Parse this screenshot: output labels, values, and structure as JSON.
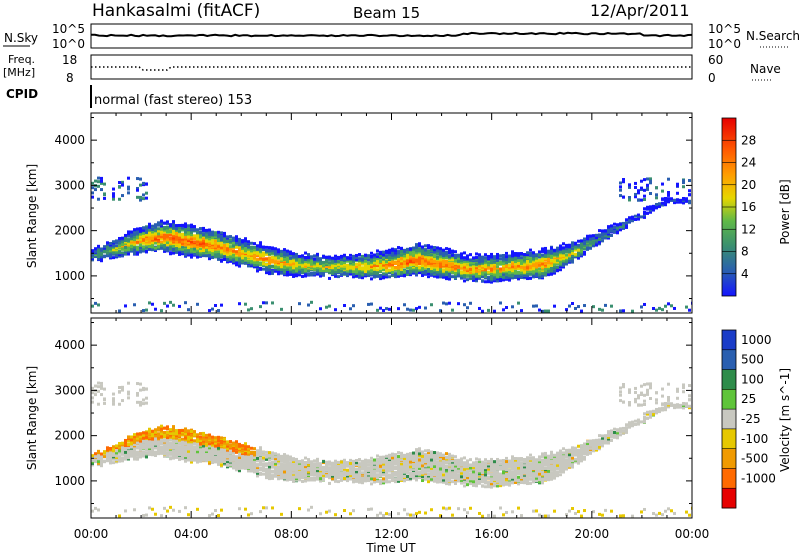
{
  "header": {
    "station": "Hankasalmi (fitACF)",
    "beam": "Beam 15",
    "date": "12/Apr/2011"
  },
  "status_panels": {
    "nsky_label": "N.Sky",
    "nsky_ticks": [
      "10^5",
      "10^0"
    ],
    "nsearch_label": "N.Search",
    "nsearch_ticks": [
      "10^5",
      "10^0"
    ],
    "freq_label": "Freq.",
    "freq_unit": "[MHz]",
    "freq_ticks": [
      "18",
      "8"
    ],
    "nave_label": "Nave",
    "nave_ticks": [
      "60",
      "0"
    ],
    "cpid_label": "CPID",
    "cpid_text": "normal (fast stereo) 153"
  },
  "colors": {
    "power_scale": [
      "#1414ff",
      "#2a5fb0",
      "#3a8f70",
      "#5fb848",
      "#e6d600",
      "#ff9e00",
      "#ff6a00",
      "#ff3a00",
      "#e60000"
    ],
    "velocity_scale": [
      "#1a3cc8",
      "#2a5fb0",
      "#2e8c4a",
      "#5fc43a",
      "#c8c8c0",
      "#e6c800",
      "#f09a00",
      "#ff6a00",
      "#e60000"
    ],
    "ground_scatter": "#c8c8c0"
  },
  "chart_data": [
    {
      "type": "heatmap",
      "title": "",
      "xlabel": "Time UT",
      "ylabel": "Slant Range [km]",
      "x_ticks": [
        "00:00",
        "04:00",
        "08:00",
        "12:00",
        "16:00",
        "20:00",
        "00:00"
      ],
      "x_range_hours": [
        0,
        24
      ],
      "y_ticks": [
        "1000",
        "2000",
        "3000",
        "4000"
      ],
      "ylim": [
        180,
        4600
      ],
      "colorbar_label": "Power [dB]",
      "colorbar_ticks": [
        "4",
        "8",
        "12",
        "16",
        "20",
        "24",
        "28"
      ],
      "colorbar_range": [
        0,
        32
      ],
      "main_band": {
        "hours": [
          0,
          1,
          2,
          3,
          4,
          5,
          6,
          7,
          8,
          9,
          10,
          11,
          12,
          13,
          14,
          15,
          16,
          17,
          18,
          19,
          20,
          21,
          22,
          23
        ],
        "center_km": [
          1500,
          1650,
          1850,
          1900,
          1800,
          1700,
          1550,
          1400,
          1300,
          1250,
          1250,
          1250,
          1300,
          1400,
          1300,
          1200,
          1200,
          1250,
          1300,
          1500,
          1800,
          2100,
          2400,
          2700
        ],
        "peak_power_db": [
          12,
          18,
          24,
          28,
          28,
          26,
          24,
          24,
          22,
          20,
          20,
          22,
          26,
          28,
          26,
          24,
          24,
          24,
          26,
          20,
          14,
          10,
          8,
          6
        ]
      }
    },
    {
      "type": "heatmap",
      "title": "",
      "xlabel": "Time UT",
      "ylabel": "Slant Range [km]",
      "x_ticks": [
        "00:00",
        "04:00",
        "08:00",
        "12:00",
        "16:00",
        "20:00",
        "00:00"
      ],
      "x_range_hours": [
        0,
        24
      ],
      "y_ticks": [
        "1000",
        "2000",
        "3000",
        "4000"
      ],
      "ylim": [
        180,
        4600
      ],
      "colorbar_label": "Velocity [m s^-1]",
      "colorbar_ticks": [
        "1000",
        "500",
        "100",
        "25",
        "-25",
        "-100",
        "-500",
        "-1000"
      ],
      "ground_scatter_band_km": [
        1500,
        1650,
        1850,
        1900,
        1800,
        1700,
        1550,
        1400,
        1300,
        1250,
        1250,
        1250,
        1300,
        1400,
        1300,
        1200,
        1200,
        1250,
        1300,
        1500,
        1800,
        2100,
        2400,
        2700
      ]
    }
  ]
}
